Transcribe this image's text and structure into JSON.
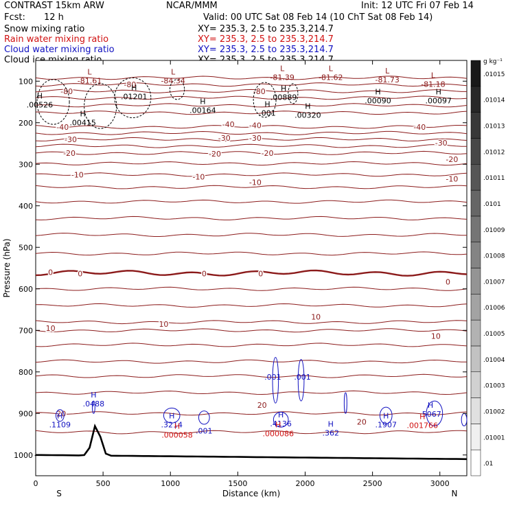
{
  "header": {
    "title": "CONTRAST 15km ARW",
    "org": "NCAR/MMM",
    "init": "Init: 12 UTC Fri 07 Feb 14",
    "fcst_label": "Fcst:",
    "fcst_value": "12 h",
    "valid": "Valid: 00 UTC Sat 08 Feb 14 (10 ChT Sat 08 Feb 14)",
    "fields": [
      {
        "name": "Snow mixing ratio",
        "xy": "XY= 235.3,  2.5 to 235.3,214.7",
        "color": "#000000"
      },
      {
        "name": "Rain water mixing ratio",
        "xy": "XY= 235.3,  2.5 to 235.3,214.7",
        "color": "#d01010"
      },
      {
        "name": "Cloud water mixing ratio",
        "xy": "XY= 235.3,  2.5 to 235.3,214.7",
        "color": "#1010c0"
      },
      {
        "name": "Cloud ice mixing ratio",
        "xy": "XY= 235.3,  2.5 to 235.3,214.7",
        "color": "#000000"
      }
    ]
  },
  "chart_data": {
    "type": "cross-section contour",
    "xlabel": "Distance (km)",
    "ylabel": "Pressure (hPa)",
    "xlim": [
      0,
      3200
    ],
    "ylim": [
      1050,
      50
    ],
    "x_ticks": [
      0,
      500,
      1000,
      1500,
      2000,
      2500,
      3000
    ],
    "y_ticks": [
      100,
      200,
      300,
      400,
      500,
      600,
      700,
      800,
      900,
      1000
    ],
    "end_labels": {
      "left": "S",
      "right": "N"
    },
    "temperature_contours_c": [
      {
        "value": -80,
        "p": 108,
        "labels": [
          {
            "x": 700,
            "p": 108,
            "text": "-80"
          },
          {
            "x": 1660,
            "p": 124,
            "text": "-80"
          },
          {
            "x": 230,
            "p": 124,
            "text": "-80"
          }
        ]
      },
      {
        "value": -40,
        "p": 210,
        "labels": [
          {
            "x": 200,
            "p": 210,
            "text": "-40"
          },
          {
            "x": 1430,
            "p": 204,
            "text": "-40"
          },
          {
            "x": 1630,
            "p": 206,
            "text": "-40"
          },
          {
            "x": 2850,
            "p": 210,
            "text": "-40"
          }
        ]
      },
      {
        "value": -30,
        "p": 240,
        "labels": [
          {
            "x": 260,
            "p": 240,
            "text": "-30"
          },
          {
            "x": 1400,
            "p": 237,
            "text": "-30"
          },
          {
            "x": 1630,
            "p": 237,
            "text": "-30"
          },
          {
            "x": 3010,
            "p": 248,
            "text": "-30"
          }
        ]
      },
      {
        "value": -20,
        "p": 273,
        "labels": [
          {
            "x": 250,
            "p": 273,
            "text": "-20"
          },
          {
            "x": 1330,
            "p": 275,
            "text": "-20"
          },
          {
            "x": 1720,
            "p": 273,
            "text": "-20"
          },
          {
            "x": 3090,
            "p": 288,
            "text": "-20"
          }
        ]
      },
      {
        "value": -10,
        "p": 325,
        "labels": [
          {
            "x": 310,
            "p": 325,
            "text": "-10"
          },
          {
            "x": 1210,
            "p": 330,
            "text": "-10"
          },
          {
            "x": 1630,
            "p": 343,
            "text": "-10"
          },
          {
            "x": 3090,
            "p": 335,
            "text": "-10"
          }
        ]
      },
      {
        "value": 0,
        "p": 562,
        "labels": [
          {
            "x": 110,
            "p": 560,
            "text": "0"
          },
          {
            "x": 330,
            "p": 563,
            "text": "0"
          },
          {
            "x": 1250,
            "p": 563,
            "text": "0"
          },
          {
            "x": 1670,
            "p": 563,
            "text": "0"
          },
          {
            "x": 3060,
            "p": 583,
            "text": "0"
          }
        ]
      },
      {
        "value": 10,
        "p": 700,
        "labels": [
          {
            "x": 110,
            "p": 695,
            "text": "10"
          },
          {
            "x": 950,
            "p": 685,
            "text": "10"
          },
          {
            "x": 2080,
            "p": 667,
            "text": "10"
          },
          {
            "x": 2970,
            "p": 714,
            "text": "10"
          }
        ]
      },
      {
        "value": 20,
        "p": 900,
        "labels": [
          {
            "x": 190,
            "p": 900,
            "text": "20"
          },
          {
            "x": 1680,
            "p": 880,
            "text": "20"
          },
          {
            "x": 2420,
            "p": 920,
            "text": "20"
          }
        ]
      }
    ],
    "highs_lows": [
      {
        "type": "L",
        "x": 400,
        "p": 92,
        "value": "-81.61",
        "color": "#8b1a1a"
      },
      {
        "type": "L",
        "x": 1020,
        "p": 92,
        "value": "-84.34",
        "color": "#8b1a1a"
      },
      {
        "type": "L",
        "x": 1830,
        "p": 84,
        "value": "-81.39",
        "color": "#8b1a1a"
      },
      {
        "type": "L",
        "x": 2190,
        "p": 84,
        "value": "-81.62",
        "color": "#8b1a1a"
      },
      {
        "type": "L",
        "x": 2610,
        "p": 90,
        "value": "-81.73",
        "color": "#8b1a1a"
      },
      {
        "type": "L",
        "x": 2950,
        "p": 100,
        "value": "-81.18",
        "color": "#8b1a1a"
      },
      {
        "type": "H",
        "x": 30,
        "p": 150,
        "value": ".00526",
        "color": "#000000"
      },
      {
        "type": "H",
        "x": 730,
        "p": 130,
        "value": ".01201",
        "color": "#000000"
      },
      {
        "type": "H",
        "x": 350,
        "p": 193,
        "value": ".00415",
        "color": "#000000"
      },
      {
        "type": "H",
        "x": 1240,
        "p": 163,
        "value": ".00164",
        "color": "#000000"
      },
      {
        "type": "H",
        "x": 1840,
        "p": 132,
        "value": ".00889",
        "color": "#000000"
      },
      {
        "type": "H",
        "x": 1720,
        "p": 170,
        "value": ".001",
        "color": "#000000"
      },
      {
        "type": "H",
        "x": 2020,
        "p": 175,
        "value": ".00320",
        "color": "#000000"
      },
      {
        "type": "H",
        "x": 2540,
        "p": 140,
        "value": ".00090",
        "color": "#000000"
      },
      {
        "type": "H",
        "x": 2990,
        "p": 140,
        "value": ".00097",
        "color": "#000000"
      },
      {
        "type": "H",
        "x": 430,
        "p": 870,
        "value": ".0488",
        "color": "#1010c0"
      },
      {
        "type": "H",
        "x": 180,
        "p": 920,
        "value": ".1109",
        "color": "#1010c0"
      },
      {
        "type": "H",
        "x": 1010,
        "p": 920,
        "value": ".3214",
        "color": "#1010c0"
      },
      {
        "type": "H",
        "x": 1050,
        "p": 945,
        "value": ".000058",
        "color": "#d01010"
      },
      {
        "type": "H",
        "x": 1820,
        "p": 918,
        "value": ".4136",
        "color": "#1010c0"
      },
      {
        "type": "H",
        "x": 1800,
        "p": 942,
        "value": ".000086",
        "color": "#d01010"
      },
      {
        "type": "H",
        "x": 2190,
        "p": 940,
        "value": ".362",
        "color": "#1010c0"
      },
      {
        "type": "H",
        "x": 2600,
        "p": 920,
        "value": ".1907",
        "color": "#1010c0"
      },
      {
        "type": "H",
        "x": 2930,
        "p": 895,
        "value": ".5067",
        "color": "#1010c0"
      },
      {
        "type": "H",
        "x": 2870,
        "p": 922,
        "value": ".001766",
        "color": "#d01010"
      }
    ],
    "contour_value_labels": [
      {
        "x": 1250,
        "p": 942,
        "text": ".001",
        "color": "#1010c0"
      },
      {
        "x": 1760,
        "p": 812,
        "text": ".001",
        "color": "#1010c0"
      },
      {
        "x": 1980,
        "p": 812,
        "text": ".001",
        "color": "#1010c0"
      }
    ],
    "terrain_peak": {
      "x": 450,
      "p": 935
    },
    "colorbar": {
      "unit": "g kg⁻¹",
      "labels": [
        ".01",
        ".01001",
        ".01002",
        ".01003",
        ".01004",
        ".01005",
        ".01006",
        ".01007",
        ".01008",
        ".01009",
        ".0101",
        ".01011",
        ".01012",
        ".01013",
        ".01014",
        ".01015"
      ]
    }
  }
}
